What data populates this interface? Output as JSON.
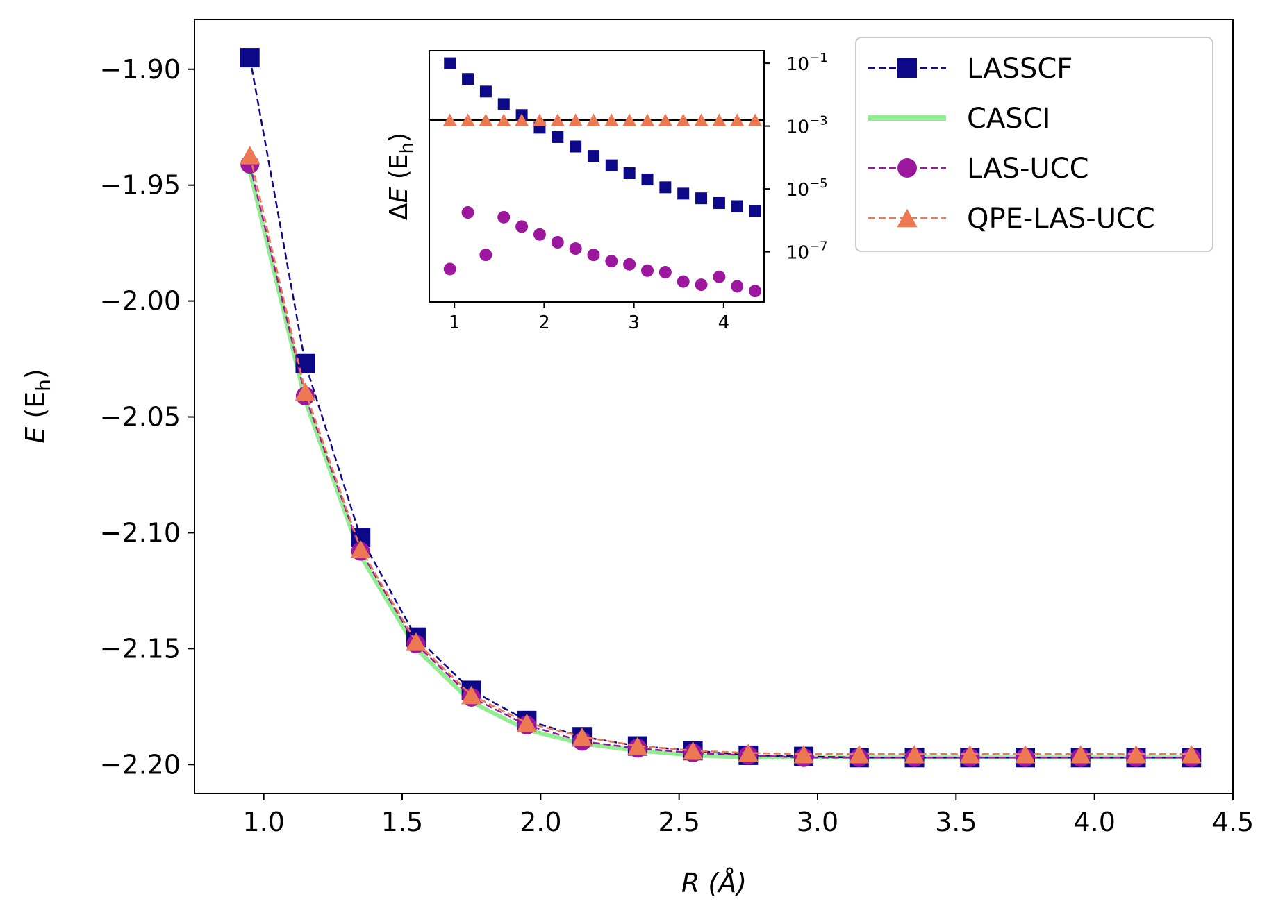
{
  "chart_data": [
    {
      "type": "line",
      "title": "",
      "xlabel_var": "R",
      "xlabel_unit": "(Å)",
      "ylabel_var": "E",
      "ylabel_unit_pre": "(E",
      "ylabel_unit_sub": "h",
      "ylabel_unit_post": ")",
      "xlim": [
        0.75,
        4.5
      ],
      "ylim": [
        -2.2125,
        -1.8785
      ],
      "xticks": [
        1.0,
        1.5,
        2.0,
        2.5,
        3.0,
        3.5,
        4.0,
        4.5
      ],
      "xtick_labels": [
        "1.0",
        "1.5",
        "2.0",
        "2.5",
        "3.0",
        "3.5",
        "4.0",
        "4.5"
      ],
      "yticks": [
        -1.9,
        -1.95,
        -2.0,
        -2.05,
        -2.1,
        -2.15,
        -2.2
      ],
      "ytick_labels": [
        "−1.90",
        "−1.95",
        "−2.00",
        "−2.05",
        "−2.10",
        "−2.15",
        "−2.20"
      ],
      "x": [
        0.95,
        1.15,
        1.35,
        1.55,
        1.75,
        1.95,
        2.15,
        2.35,
        2.55,
        2.75,
        2.95,
        3.15,
        3.35,
        3.55,
        3.75,
        3.95,
        4.15,
        4.35
      ],
      "legend_position": "top-right",
      "series": [
        {
          "name": "LASSCF",
          "color": "#0d0887",
          "marker": "square",
          "line": "dashed",
          "values": [
            -1.895,
            -2.027,
            -2.102,
            -2.145,
            -2.168,
            -2.181,
            -2.188,
            -2.192,
            -2.194,
            -2.196,
            -2.1965,
            -2.197,
            -2.197,
            -2.197,
            -2.197,
            -2.197,
            -2.197,
            -2.197
          ]
        },
        {
          "name": "CASCI",
          "color": "#90ee90",
          "marker": "none",
          "line": "solid",
          "values": [
            -1.944,
            -2.043,
            -2.11,
            -2.15,
            -2.173,
            -2.185,
            -2.191,
            -2.194,
            -2.196,
            -2.197,
            -2.197,
            -2.197,
            -2.197,
            -2.197,
            -2.197,
            -2.197,
            -2.197,
            -2.197
          ]
        },
        {
          "name": "LAS-UCC",
          "color": "#9c179e",
          "marker": "circle",
          "line": "dashed",
          "values": [
            -1.941,
            -2.041,
            -2.108,
            -2.148,
            -2.171,
            -2.183,
            -2.19,
            -2.193,
            -2.195,
            -2.196,
            -2.197,
            -2.197,
            -2.197,
            -2.197,
            -2.197,
            -2.197,
            -2.197,
            -2.197
          ]
        },
        {
          "name": "QPE-LAS-UCC",
          "color": "#ed7953",
          "marker": "triangle",
          "line": "dashed",
          "values": [
            -1.937,
            -2.039,
            -2.107,
            -2.147,
            -2.17,
            -2.182,
            -2.188,
            -2.192,
            -2.194,
            -2.195,
            -2.1955,
            -2.1955,
            -2.1955,
            -2.1955,
            -2.1955,
            -2.1955,
            -2.1955,
            -2.1955
          ]
        }
      ]
    },
    {
      "type": "scatter",
      "inset": true,
      "ylabel_pre": "Δ",
      "ylabel_var": "E",
      "ylabel_unit_pre": "(E",
      "ylabel_unit_sub": "h",
      "ylabel_unit_post": ")",
      "yscale": "log",
      "xlim": [
        0.72,
        4.45
      ],
      "ylim_log10": [
        -8.6,
        -0.6
      ],
      "xticks": [
        1,
        2,
        3,
        4
      ],
      "xtick_labels": [
        "1",
        "2",
        "3",
        "4"
      ],
      "yticks_exp": [
        -1,
        -3,
        -5,
        -7
      ],
      "ytick_base": "10",
      "ytick_exps": [
        "−1",
        "−3",
        "−5",
        "−7"
      ],
      "reference_line_log10": -2.8,
      "x": [
        0.95,
        1.15,
        1.35,
        1.55,
        1.75,
        1.95,
        2.15,
        2.35,
        2.55,
        2.75,
        2.95,
        3.15,
        3.35,
        3.55,
        3.75,
        3.95,
        4.15,
        4.35
      ],
      "series": [
        {
          "name": "LASSCF",
          "color": "#0d0887",
          "marker": "square",
          "log10_values": [
            -1.0,
            -1.5,
            -1.9,
            -2.3,
            -2.65,
            -3.05,
            -3.35,
            -3.65,
            -3.95,
            -4.25,
            -4.5,
            -4.7,
            -4.95,
            -5.15,
            -5.3,
            -5.45,
            -5.55,
            -5.7
          ]
        },
        {
          "name": "LAS-UCC",
          "color": "#9c179e",
          "marker": "circle",
          "log10_values": [
            -7.55,
            -5.75,
            -7.1,
            -5.9,
            -6.2,
            -6.45,
            -6.7,
            -6.9,
            -7.1,
            -7.3,
            -7.4,
            -7.6,
            -7.65,
            -7.95,
            -8.05,
            -7.8,
            -8.1,
            -8.25
          ]
        },
        {
          "name": "QPE-LAS-UCC",
          "color": "#ed7953",
          "marker": "triangle",
          "log10_values": [
            -2.8,
            -2.8,
            -2.8,
            -2.8,
            -2.8,
            -2.8,
            -2.8,
            -2.8,
            -2.8,
            -2.8,
            -2.8,
            -2.8,
            -2.8,
            -2.8,
            -2.8,
            -2.8,
            -2.8,
            -2.8
          ]
        }
      ]
    }
  ]
}
